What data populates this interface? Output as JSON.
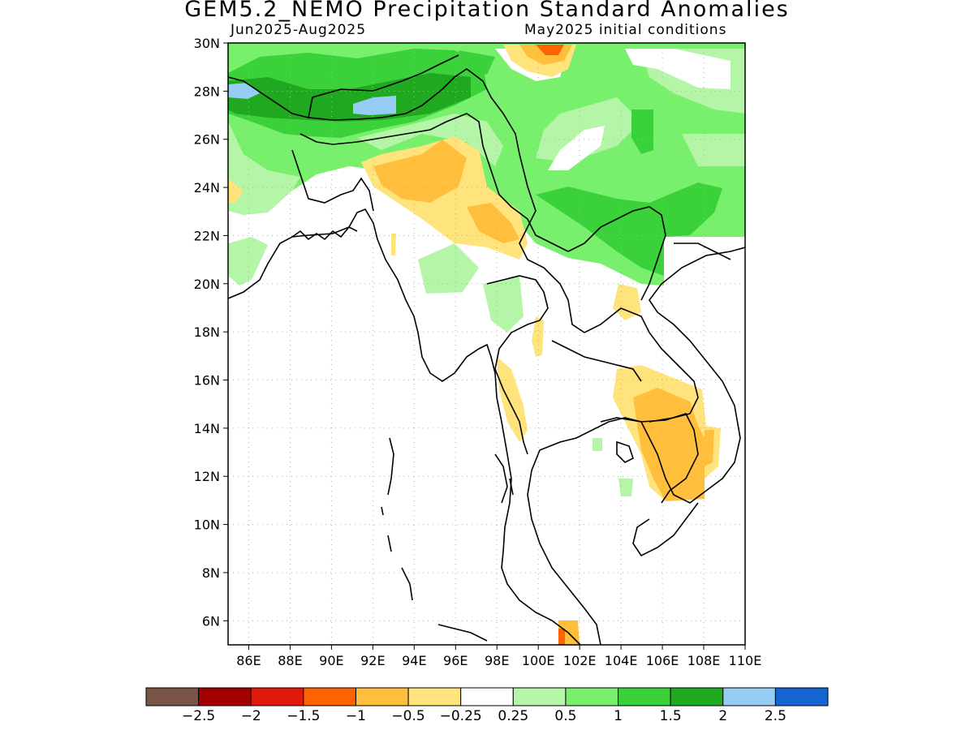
{
  "title": "GEM5.2_NEMO Precipitation Standard Anomalies",
  "period": "Jun2025-Aug2025",
  "initial_conditions": "May2025 initial conditions",
  "map": {
    "lon_range": [
      85,
      110
    ],
    "lat_range": [
      5,
      30
    ],
    "lat_ticks": [
      "6N",
      "8N",
      "10N",
      "12N",
      "14N",
      "16N",
      "18N",
      "20N",
      "22N",
      "24N",
      "26N",
      "28N",
      "30N"
    ],
    "lat_values": [
      6,
      8,
      10,
      12,
      14,
      16,
      18,
      20,
      22,
      24,
      26,
      28,
      30
    ],
    "lon_ticks": [
      "86E",
      "88E",
      "90E",
      "92E",
      "94E",
      "96E",
      "98E",
      "100E",
      "102E",
      "104E",
      "106E",
      "108E",
      "110E"
    ],
    "lon_values": [
      86,
      88,
      90,
      92,
      94,
      96,
      98,
      100,
      102,
      104,
      106,
      108,
      110
    ],
    "grid": "dotted"
  },
  "colorbar": {
    "colors": [
      "#7a5446",
      "#a40000",
      "#e01a0a",
      "#ff6200",
      "#ffbe3c",
      "#ffe37c",
      "#ffffff",
      "#b4f5a8",
      "#78f06e",
      "#3ad13a",
      "#20a820",
      "#96cdf5",
      "#1464d2"
    ],
    "labels": [
      "-2.5",
      "-2",
      "-1.5",
      "-1",
      "-0.5",
      "-0.25",
      "0.25",
      "0.5",
      "1",
      "1.5",
      "2",
      "2.5"
    ]
  }
}
